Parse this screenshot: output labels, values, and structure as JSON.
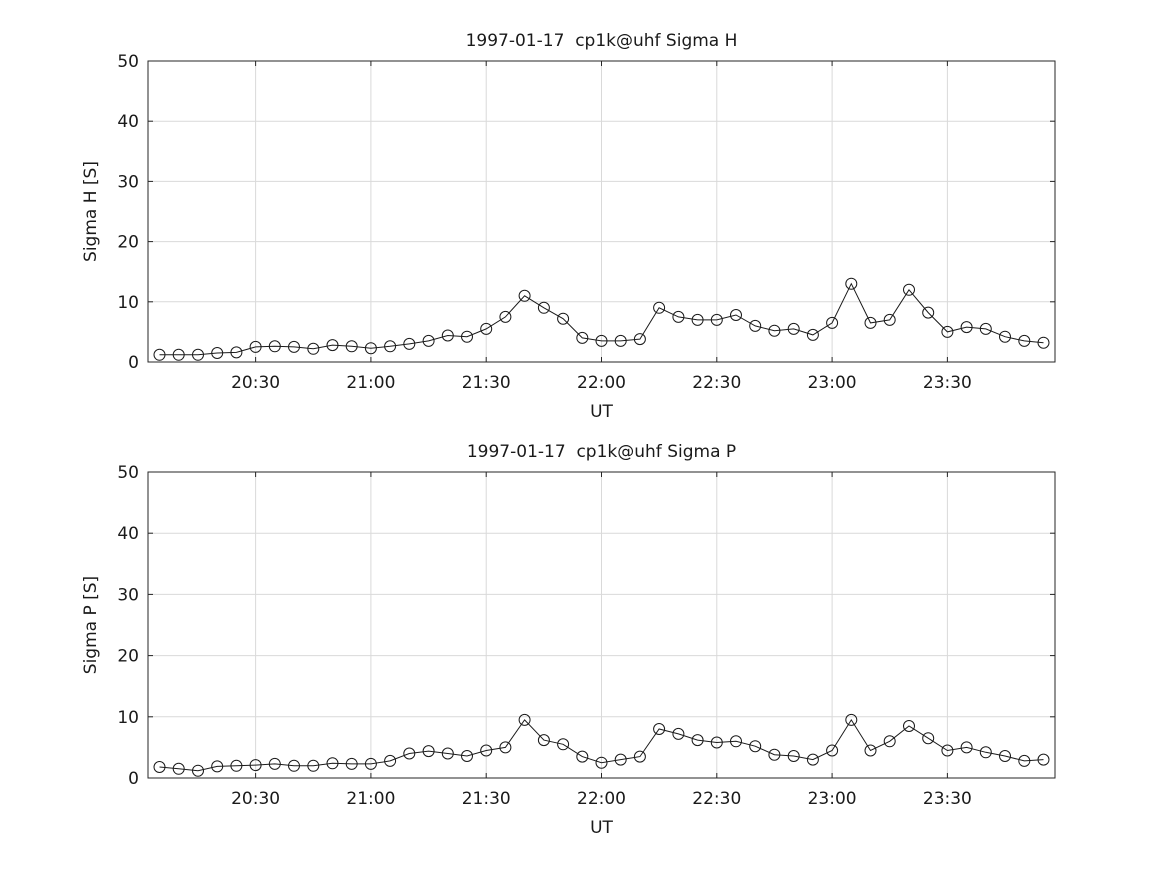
{
  "colors": {
    "line": "#1a1a1a",
    "grid": "#d9d9d9",
    "background": "#ffffff"
  },
  "chart_data": [
    {
      "type": "line",
      "title": "1997-01-17  cp1k@uhf Sigma H",
      "xlabel": "UT",
      "ylabel": "Sigma H [S]",
      "ylim": [
        0,
        50
      ],
      "yticks": [
        0,
        10,
        20,
        30,
        40,
        50
      ],
      "xlim": [
        "20:02",
        "23:58"
      ],
      "xtick_labels": [
        "20:30",
        "21:00",
        "21:30",
        "22:00",
        "22:30",
        "23:00",
        "23:30"
      ],
      "grid": true,
      "marker": "o",
      "x": [
        "20:05",
        "20:10",
        "20:15",
        "20:20",
        "20:25",
        "20:30",
        "20:35",
        "20:40",
        "20:45",
        "20:50",
        "20:55",
        "21:00",
        "21:05",
        "21:10",
        "21:15",
        "21:20",
        "21:25",
        "21:30",
        "21:35",
        "21:40",
        "21:45",
        "21:50",
        "21:55",
        "22:00",
        "22:05",
        "22:10",
        "22:15",
        "22:20",
        "22:25",
        "22:30",
        "22:35",
        "22:40",
        "22:45",
        "22:50",
        "22:55",
        "23:00",
        "23:05",
        "23:10",
        "23:15",
        "23:20",
        "23:25",
        "23:30",
        "23:35",
        "23:40",
        "23:45",
        "23:50",
        "23:55"
      ],
      "y": [
        1.2,
        1.2,
        1.2,
        1.5,
        1.6,
        2.5,
        2.6,
        2.5,
        2.2,
        2.8,
        2.6,
        2.3,
        2.6,
        3.0,
        3.5,
        4.4,
        4.2,
        5.5,
        7.5,
        11.0,
        9.0,
        7.2,
        4.0,
        3.5,
        3.5,
        3.8,
        9.0,
        7.5,
        7.0,
        7.0,
        7.8,
        6.0,
        5.2,
        5.5,
        4.5,
        6.5,
        13.0,
        6.5,
        7.0,
        12.0,
        8.2,
        5.0,
        5.8,
        5.5,
        4.2,
        3.5,
        3.2
      ]
    },
    {
      "type": "line",
      "title": "1997-01-17  cp1k@uhf Sigma P",
      "xlabel": "UT",
      "ylabel": "Sigma P [S]",
      "ylim": [
        0,
        50
      ],
      "yticks": [
        0,
        10,
        20,
        30,
        40,
        50
      ],
      "xlim": [
        "20:02",
        "23:58"
      ],
      "xtick_labels": [
        "20:30",
        "21:00",
        "21:30",
        "22:00",
        "22:30",
        "23:00",
        "23:30"
      ],
      "grid": true,
      "marker": "o",
      "x": [
        "20:05",
        "20:10",
        "20:15",
        "20:20",
        "20:25",
        "20:30",
        "20:35",
        "20:40",
        "20:45",
        "20:50",
        "20:55",
        "21:00",
        "21:05",
        "21:10",
        "21:15",
        "21:20",
        "21:25",
        "21:30",
        "21:35",
        "21:40",
        "21:45",
        "21:50",
        "21:55",
        "22:00",
        "22:05",
        "22:10",
        "22:15",
        "22:20",
        "22:25",
        "22:30",
        "22:35",
        "22:40",
        "22:45",
        "22:50",
        "22:55",
        "23:00",
        "23:05",
        "23:10",
        "23:15",
        "23:20",
        "23:25",
        "23:30",
        "23:35",
        "23:40",
        "23:45",
        "23:50",
        "23:55"
      ],
      "y": [
        1.8,
        1.5,
        1.2,
        1.9,
        2.0,
        2.1,
        2.3,
        2.0,
        2.0,
        2.4,
        2.3,
        2.3,
        2.8,
        4.0,
        4.4,
        4.0,
        3.6,
        4.5,
        5.0,
        9.5,
        6.2,
        5.5,
        3.5,
        2.5,
        3.0,
        3.5,
        8.0,
        7.2,
        6.2,
        5.8,
        6.0,
        5.2,
        3.8,
        3.6,
        3.0,
        4.5,
        9.5,
        4.5,
        6.0,
        8.5,
        6.5,
        4.5,
        5.0,
        4.2,
        3.6,
        2.8,
        3.0
      ]
    }
  ]
}
